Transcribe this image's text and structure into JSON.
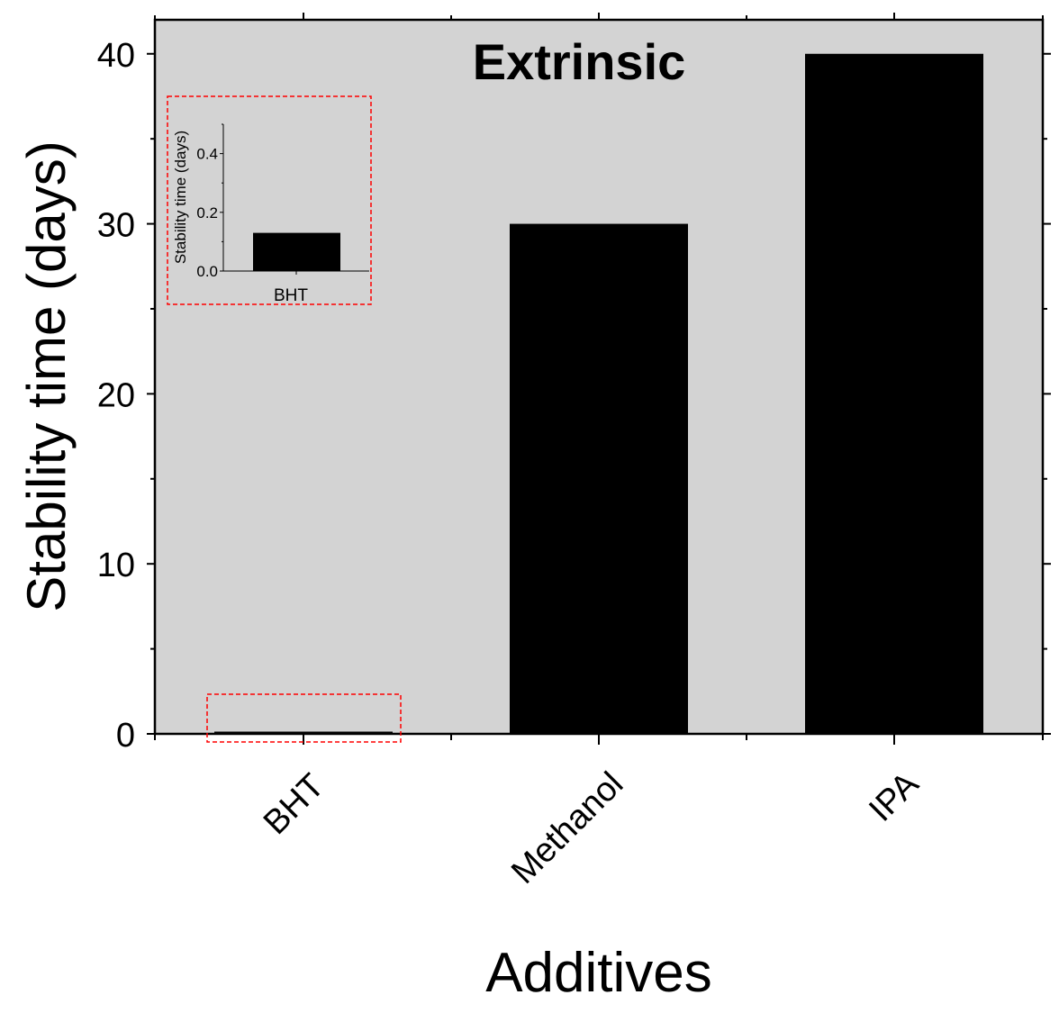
{
  "chart_data": {
    "type": "bar",
    "title": "Extrinsic",
    "xlabel": "Additives",
    "ylabel": "Stability time (days)",
    "categories": [
      "BHT",
      "Methanol",
      "IPA"
    ],
    "values": [
      0.13,
      30,
      40
    ],
    "ylim": [
      0,
      42
    ],
    "yticks": [
      0,
      10,
      20,
      30,
      40
    ],
    "ytick_labels": [
      "0",
      "10",
      "20",
      "30",
      "40"
    ],
    "bar_color": "#000000",
    "plot_background": "#d3d3d3",
    "highlight_color": "#ff0000",
    "inset": {
      "type": "bar",
      "categories": [
        "BHT"
      ],
      "values": [
        0.13
      ],
      "ylabel": "Stability time (days)",
      "ylim": [
        0,
        0.5
      ],
      "yticks": [
        0.0,
        0.2,
        0.4
      ],
      "ytick_labels": [
        "0.0",
        "0.2",
        "0.4"
      ]
    }
  }
}
